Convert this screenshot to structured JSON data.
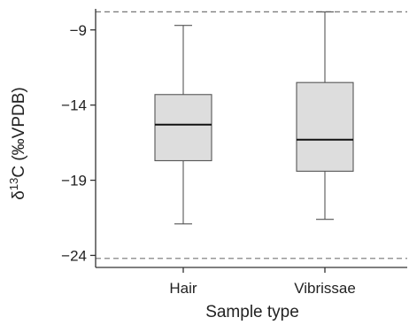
{
  "chart_data": {
    "type": "boxplot",
    "title": "",
    "xlabel": "Sample type",
    "ylabel": "δ¹³C (‰VPDB)",
    "ylim": [
      -24.8,
      -7.6
    ],
    "yticks": [
      -9,
      -14,
      -19,
      -24
    ],
    "categories": [
      "Hair",
      "Vibrissae"
    ],
    "boxes": [
      {
        "category": "Hair",
        "whisker_low": -21.9,
        "q1": -17.7,
        "median": -15.3,
        "q3": -13.3,
        "whisker_high": -8.7
      },
      {
        "category": "Vibrissae",
        "whisker_low": -21.6,
        "q1": -18.4,
        "median": -16.3,
        "q3": -12.5,
        "whisker_high": -7.8
      }
    ],
    "reference_lines": [
      {
        "y": -7.8,
        "style": "dashed"
      },
      {
        "y": -24.2,
        "style": "dashed"
      }
    ],
    "grid": false,
    "legend": "none",
    "colors": {
      "box_fill": "#dddddd",
      "box_stroke": "#555555",
      "median": "#111111",
      "axis": "#333333",
      "reference": "#777777"
    }
  }
}
